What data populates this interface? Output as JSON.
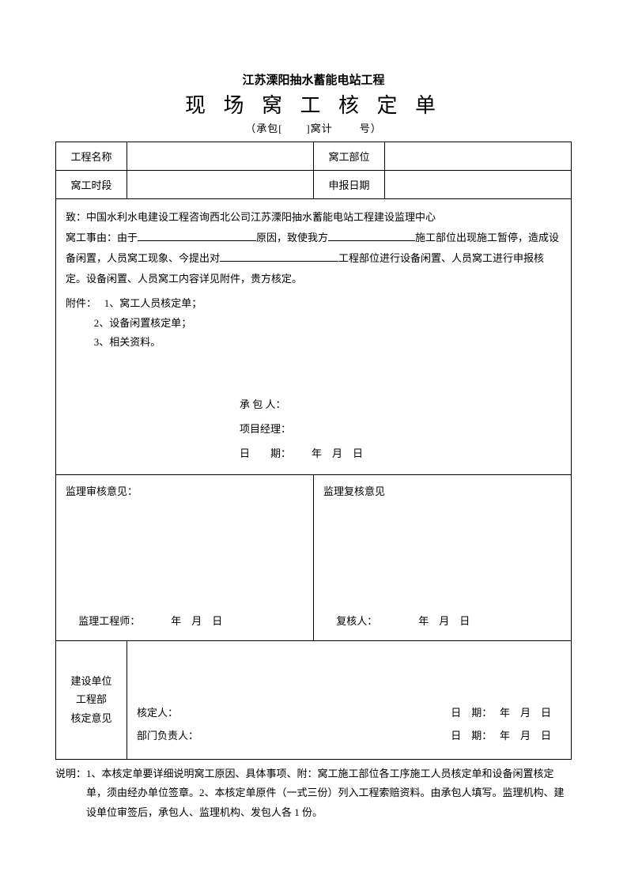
{
  "header": {
    "project": "江苏溧阳抽水蓄能电站工程",
    "title": "现 场 窝 工 核 定 单",
    "subtitle_prefix": "（承包[",
    "subtitle_mid": "]窝计",
    "subtitle_suffix": "号）"
  },
  "row1": {
    "label_project_name": "工程名称",
    "value_project_name": "",
    "label_dept": "窝工部位",
    "value_dept": ""
  },
  "row2": {
    "label_period": "窝工时段",
    "value_period": "",
    "label_report_date": "申报日期",
    "value_report_date": ""
  },
  "body": {
    "to": "致：中国水利水电建设工程咨询西北公司江苏溧阳抽水蓄能电站工程建设监理中心",
    "reason_prefix": "窝工事由：由于",
    "reason_mid1": "原因，致使我方",
    "reason_mid2": "施工部位出现施工暂停，造成设备闲置，人员窝工现象、今提出对",
    "reason_end": "工程部位进行设备闲置、人员窝工进行申报核定。设备闲置、人员窝工内容详见附件，贵方核定。",
    "attach_label": "附件：",
    "attach_1": "1、窝工人员核定单；",
    "attach_2": "2、设备闲置核定单；",
    "attach_3": "3、相关资料。",
    "sig_contractor": "承 包 人：",
    "sig_pm": "项目经理：",
    "sig_date_label": "日　　期：",
    "sig_date_value": "年　月　日"
  },
  "review": {
    "left_title": "监理审核意见：",
    "left_sign_label": "监理工程师：",
    "left_date": "年　月　日",
    "right_title": "监理复核意见",
    "right_sign_label": "复核人：",
    "right_date": "年　月　日"
  },
  "owner": {
    "label_l1": "建设单位",
    "label_l2": "工程部",
    "label_l3": "核定意见",
    "row1_left": "核定人：",
    "row1_date_label": "日　期：",
    "row1_date_value": "年　月　日",
    "row2_left": "部门负责人：",
    "row2_date_label": "日　期：",
    "row2_date_value": "年　月　日"
  },
  "notes": {
    "text": "说明：1、本核定单要详细说明窝工原因、具体事项、附：窝工施工部位各工序施工人员核定单和设备闲置核定单，须由经办单位签章。2、本核定单原件（一式三份）列入工程索赔资料。由承包人填写。监理机构、建设单位审签后，承包人、监理机构、发包人各 1 份。"
  },
  "colors": {
    "text": "#000000",
    "background": "#ffffff",
    "border": "#000000"
  }
}
